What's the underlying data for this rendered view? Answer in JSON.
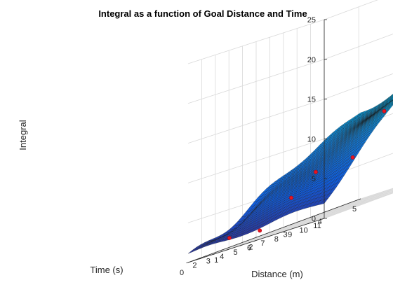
{
  "chart_data": {
    "type": "surface",
    "title": "Integral as a function of Goal Distance and Time",
    "xlabel": "Distance (m)",
    "ylabel": "Time (s)",
    "zlabel": "Integral",
    "xlim": [
      0,
      5
    ],
    "ylim": [
      1,
      11
    ],
    "zlim": [
      0,
      25
    ],
    "xticks": [
      "0",
      "1",
      "2",
      "3",
      "4",
      "5"
    ],
    "yticks": [
      "2",
      "3",
      "4",
      "5",
      "6",
      "7",
      "8",
      "9",
      "10",
      "11"
    ],
    "zticks": [
      "0",
      "5",
      "10",
      "15",
      "20",
      "25"
    ],
    "grid": true,
    "colormap": "parula",
    "samples": [
      {
        "x": 1.0,
        "y": 1.5,
        "z": 1.2
      },
      {
        "x": 0.5,
        "y": 5.0,
        "z": 1.0
      },
      {
        "x": 2.2,
        "y": 3.0,
        "z": 3.5
      },
      {
        "x": 3.5,
        "y": 1.5,
        "z": 5.5
      },
      {
        "x": 2.6,
        "y": 6.5,
        "z": 6.0
      },
      {
        "x": 4.3,
        "y": 4.5,
        "z": 10.2
      },
      {
        "x": 4.5,
        "y": 5.5,
        "z": 8.5
      },
      {
        "x": 4.7,
        "y": 7.5,
        "z": 12.0
      },
      {
        "x": 3.0,
        "y": 10.0,
        "z": 14.0
      },
      {
        "x": 4.5,
        "y": 9.0,
        "z": 21.0
      },
      {
        "x": 4.3,
        "y": 10.5,
        "z": 19.0
      }
    ]
  }
}
